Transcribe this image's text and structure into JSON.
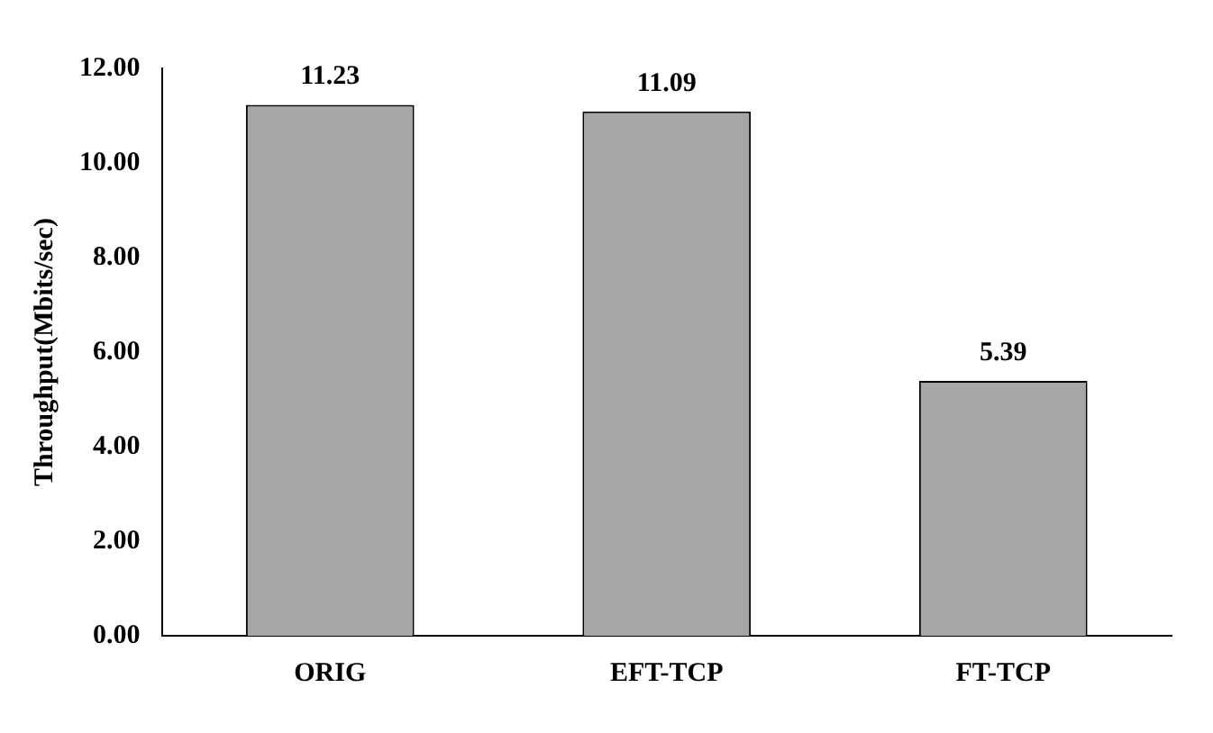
{
  "chart_data": {
    "type": "bar",
    "ylabel": "Throughput(Mbits/sec)",
    "categories": [
      "ORIG",
      "EFT-TCP",
      "FT-TCP"
    ],
    "values": [
      11.23,
      11.09,
      5.39
    ],
    "color": "#a6a6a6",
    "ylim": [
      0,
      12
    ],
    "yticks": [
      {
        "value": 0,
        "label": "0.00"
      },
      {
        "value": 2,
        "label": "2.00"
      },
      {
        "value": 4,
        "label": "4.00"
      },
      {
        "value": 6,
        "label": "6.00"
      },
      {
        "value": 8,
        "label": "8.00"
      },
      {
        "value": 10,
        "label": "10.00"
      },
      {
        "value": 12,
        "label": "12.00"
      }
    ],
    "data_labels": true,
    "grid": false,
    "legend": false
  }
}
